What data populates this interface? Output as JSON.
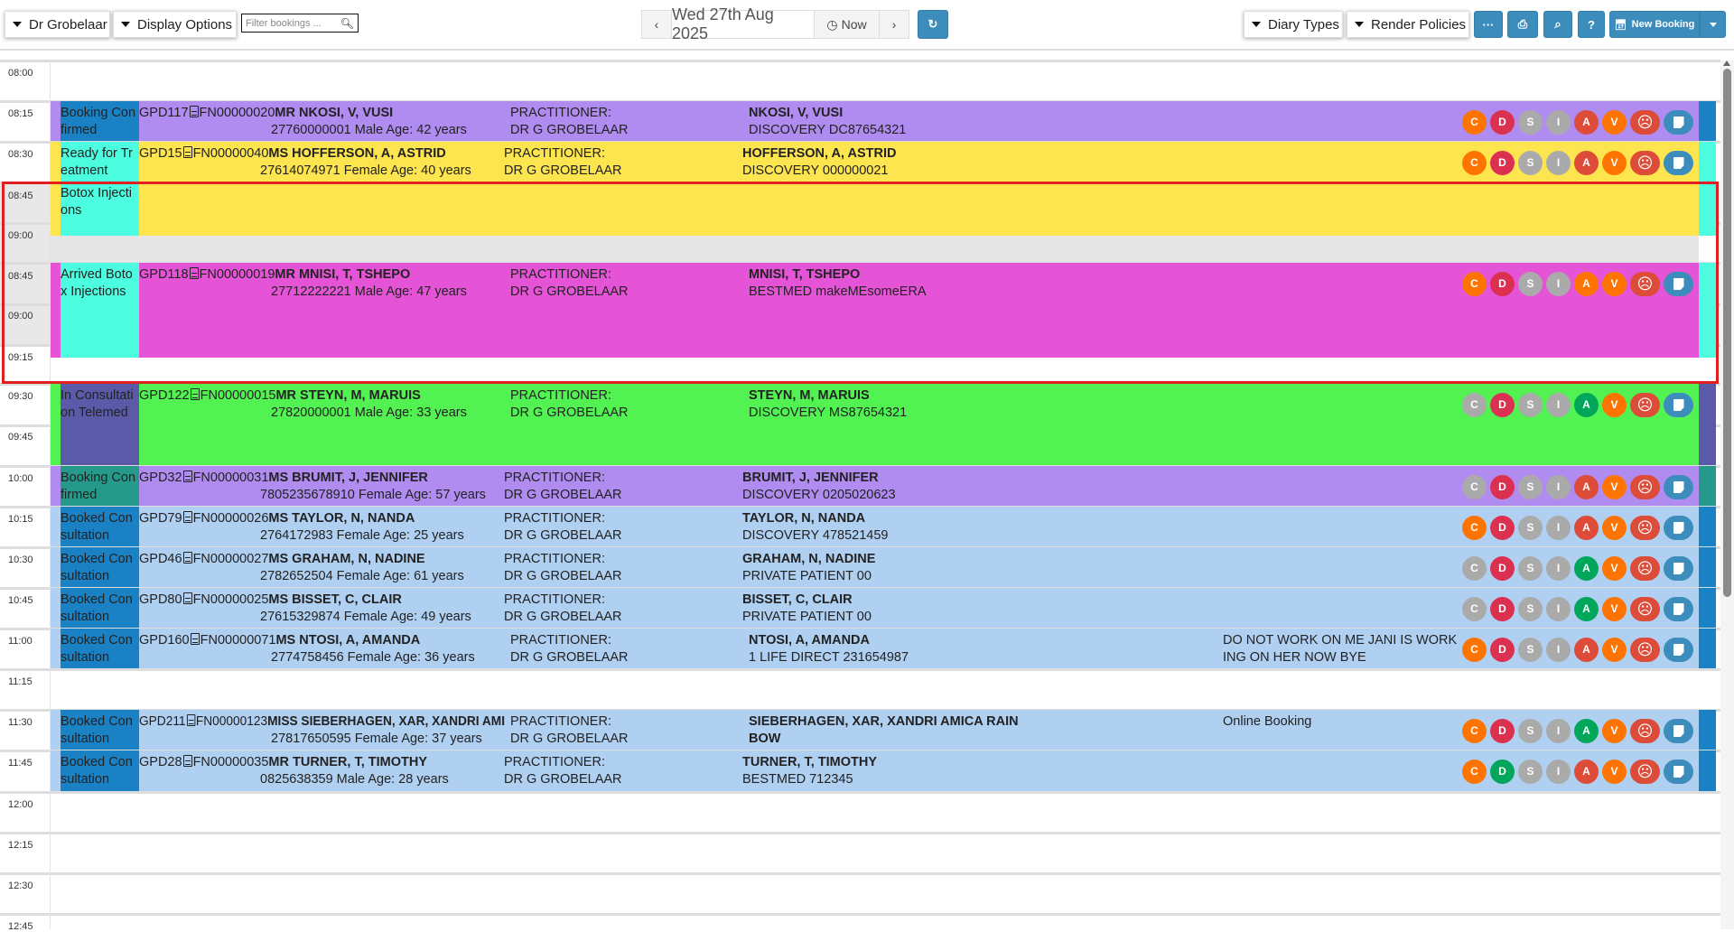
{
  "header": {
    "practitioner_dropdown": "Dr Grobelaar",
    "display_options": "Display Options",
    "filter_placeholder": "Filter bookings ...",
    "date": "Wed 27th Aug 2025",
    "now_label": "Now",
    "diary_types": "Diary Types",
    "render_policies": "Render Policies",
    "more_label": "···",
    "help_label": "?",
    "new_booking": "New Booking"
  },
  "time_labels": [
    "08:00",
    "08:15",
    "08:30",
    "08:45",
    "09:00",
    "08:45",
    "09:00",
    "09:15",
    "09:30",
    "09:45",
    "10:00",
    "10:15",
    "10:30",
    "10:45",
    "11:00",
    "11:15",
    "11:30",
    "11:45",
    "12:00",
    "12:15",
    "12:30",
    "12:45"
  ],
  "bookings": [
    {
      "status": "Booking Confirmed",
      "status_color": "#1a82c4",
      "bg": "#b08cf0",
      "gpd": "GPD117",
      "fn": "FN00000020",
      "name": "MR NKOSI, V, VUSI",
      "details": "27760000001 Male Age: 42 years",
      "prac_label": "PRACTITIONER:",
      "prac": "DR G GROBELAAR",
      "patient": "NKOSI, V, VUSI",
      "aid": "DISCOVERY DC87654321",
      "note": "",
      "badges": [
        "#ff7400",
        "#dc3050",
        "#aaaaaa",
        "#aaaaaa",
        "#dd4b39",
        "#ff7400"
      ]
    },
    {
      "status": "Ready for Treatment",
      "status2": "Botox Injections",
      "status_color": "#4dfde0",
      "bg": "#fde54f",
      "gpd": "GPD15",
      "fn": "FN00000040",
      "name": "MS HOFFERSON, A, ASTRID",
      "details": "27614074971 Female Age: 40 years",
      "prac_label": "PRACTITIONER:",
      "prac": "DR G GROBELAAR",
      "patient": "HOFFERSON, A, ASTRID",
      "aid": "DISCOVERY 000000021",
      "note": "",
      "badges": [
        "#ff7400",
        "#dc3050",
        "#aaaaaa",
        "#aaaaaa",
        "#dd4b39",
        "#ff7400"
      ]
    },
    {
      "status": "Arrived Botox Injections",
      "status_color": "#4dfde0",
      "bg": "#e553d6",
      "gpd": "GPD118",
      "fn": "FN00000019",
      "name": "MR MNISI, T, TSHEPO",
      "details": "27712222221 Male Age: 47 years",
      "prac_label": "PRACTITIONER:",
      "prac": "DR G GROBELAAR",
      "patient": "MNISI, T, TSHEPO",
      "aid": "BESTMED makeMEsomeERA",
      "note": "",
      "badges": [
        "#ff7400",
        "#dc3050",
        "#aaaaaa",
        "#aaaaaa",
        "#ff7400",
        "#ff7400"
      ]
    },
    {
      "status": "In Consultation Telemed",
      "status_color": "#5a5aa8",
      "bg": "#52f252",
      "gpd": "GPD122",
      "fn": "FN00000015",
      "name": "MR STEYN, M, MARUIS",
      "details": "27820000001 Male Age: 33 years",
      "prac_label": "PRACTITIONER:",
      "prac": "DR G GROBELAAR",
      "patient": "STEYN, M, MARUIS",
      "aid": "DISCOVERY MS87654321",
      "note": "",
      "badges": [
        "#aaaaaa",
        "#dc3050",
        "#aaaaaa",
        "#aaaaaa",
        "#00a65a",
        "#ff7400"
      ]
    },
    {
      "status": "Booking Confirmed",
      "status_color": "#269a8a",
      "bg": "#b08cf0",
      "gpd": "GPD32",
      "fn": "FN00000031",
      "name": "MS BRUMIT, J, JENNIFER",
      "details": "7805235678910 Female Age: 57 years",
      "prac_label": "PRACTITIONER:",
      "prac": "DR G GROBELAAR",
      "patient": "BRUMIT, J, JENNIFER",
      "aid": "DISCOVERY 0205020623",
      "note": "",
      "badges": [
        "#aaaaaa",
        "#dc3050",
        "#aaaaaa",
        "#aaaaaa",
        "#dd4b39",
        "#ff7400"
      ]
    },
    {
      "status": "Booked Consultation",
      "status_color": "#1a82c4",
      "bg": "#b0d0f2",
      "gpd": "GPD79",
      "fn": "FN00000026",
      "name": "MS TAYLOR, N, NANDA",
      "details": "2764172983 Female Age: 25 years",
      "prac_label": "PRACTITIONER:",
      "prac": "DR G GROBELAAR",
      "patient": "TAYLOR, N, NANDA",
      "aid": "DISCOVERY 478521459",
      "note": "",
      "badges": [
        "#ff7400",
        "#dc3050",
        "#aaaaaa",
        "#aaaaaa",
        "#dd4b39",
        "#ff7400"
      ]
    },
    {
      "status": "Booked Consultation",
      "status_color": "#1a82c4",
      "bg": "#b0d0f2",
      "gpd": "GPD46",
      "fn": "FN00000027",
      "name": "MS GRAHAM, N, NADINE",
      "details": "2782652504 Female Age: 61 years",
      "prac_label": "PRACTITIONER:",
      "prac": "DR G GROBELAAR",
      "patient": "GRAHAM, N, NADINE",
      "aid": "PRIVATE PATIENT 00",
      "note": "",
      "badges": [
        "#aaaaaa",
        "#dc3050",
        "#aaaaaa",
        "#aaaaaa",
        "#00a65a",
        "#ff7400"
      ]
    },
    {
      "status": "Booked Consultation",
      "status_color": "#1a82c4",
      "bg": "#b0d0f2",
      "gpd": "GPD80",
      "fn": "FN00000025",
      "name": "MS BISSET, C, CLAIR",
      "details": "27615329874 Female Age: 49 years",
      "prac_label": "PRACTITIONER:",
      "prac": "DR G GROBELAAR",
      "patient": "BISSET, C, CLAIR",
      "aid": "PRIVATE PATIENT 00",
      "note": "",
      "badges": [
        "#aaaaaa",
        "#dc3050",
        "#aaaaaa",
        "#aaaaaa",
        "#00a65a",
        "#ff7400"
      ]
    },
    {
      "status": "Booked Consultation",
      "status_color": "#1a82c4",
      "bg": "#b0d0f2",
      "gpd": "GPD160",
      "fn": "FN00000071",
      "name": "MS NTOSI, A, AMANDA",
      "details": "2774758456 Female Age: 36 years",
      "prac_label": "PRACTITIONER:",
      "prac": "DR G GROBELAAR",
      "patient": "NTOSI, A, AMANDA",
      "aid": "1 LIFE DIRECT 231654987",
      "note": "DO NOT WORK ON ME JANI IS WORKING ON HER NOW BYE",
      "badges": [
        "#ff7400",
        "#dc3050",
        "#aaaaaa",
        "#aaaaaa",
        "#dd4b39",
        "#ff7400"
      ]
    },
    {
      "status": "Booked Consultation",
      "status_color": "#1a82c4",
      "bg": "#b0d0f2",
      "gpd": "GPD211",
      "fn": "FN00000123",
      "name": "MISS SIEBERHAGEN, XAR, XANDRI AMI",
      "details": "27817650595 Female Age: 37 years",
      "prac_label": "PRACTITIONER:",
      "prac": "DR G GROBELAAR",
      "patient": "SIEBERHAGEN, XAR, XANDRI AMICA RAINBOW",
      "aid": "",
      "note": "Online Booking",
      "badges": [
        "#ff7400",
        "#dc3050",
        "#aaaaaa",
        "#aaaaaa",
        "#00a65a",
        "#ff7400"
      ]
    },
    {
      "status": "Booked Consultation",
      "status_color": "#1a82c4",
      "bg": "#b0d0f2",
      "gpd": "GPD28",
      "fn": "FN00000035",
      "name": "MR TURNER, T, TIMOTHY",
      "details": "0825638359 Male Age: 28 years",
      "prac_label": "PRACTITIONER:",
      "prac": "DR G GROBELAAR",
      "patient": "TURNER, T, TIMOTHY",
      "aid": "BESTMED 712345",
      "note": "",
      "badges": [
        "#ff7400",
        "#00a65a",
        "#aaaaaa",
        "#aaaaaa",
        "#dd4b39",
        "#ff7400"
      ]
    }
  ],
  "badge_letters": [
    "C",
    "D",
    "S",
    "I",
    "A",
    "V"
  ],
  "badge_colors": {
    "sad": "#dd4b39",
    "note": "#3c8dbc"
  }
}
